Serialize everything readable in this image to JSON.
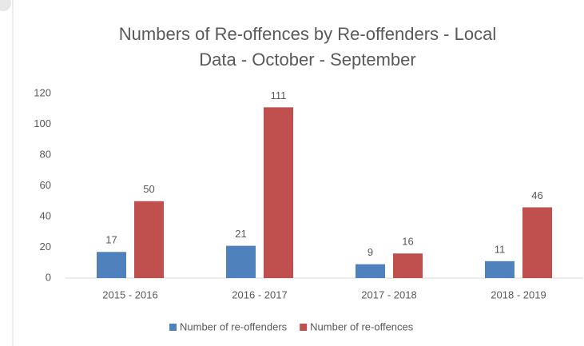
{
  "chart_data": {
    "type": "bar",
    "title": [
      "Numbers of Re-offences by Re-offenders - Local",
      "Data - October - September"
    ],
    "categories": [
      "2015 - 2016",
      "2016 - 2017",
      "2017 - 2018",
      "2018 - 2019"
    ],
    "series": [
      {
        "name": "Number of re-offenders",
        "color": "#4f81bd",
        "values": [
          17,
          21,
          9,
          11
        ]
      },
      {
        "name": "Number of re-offences",
        "color": "#c0504d",
        "values": [
          50,
          111,
          16,
          46
        ]
      }
    ],
    "ylim": [
      0,
      120
    ],
    "yticks": [
      0,
      20,
      40,
      60,
      80,
      100,
      120
    ],
    "grid": false,
    "legend": "bottom"
  }
}
